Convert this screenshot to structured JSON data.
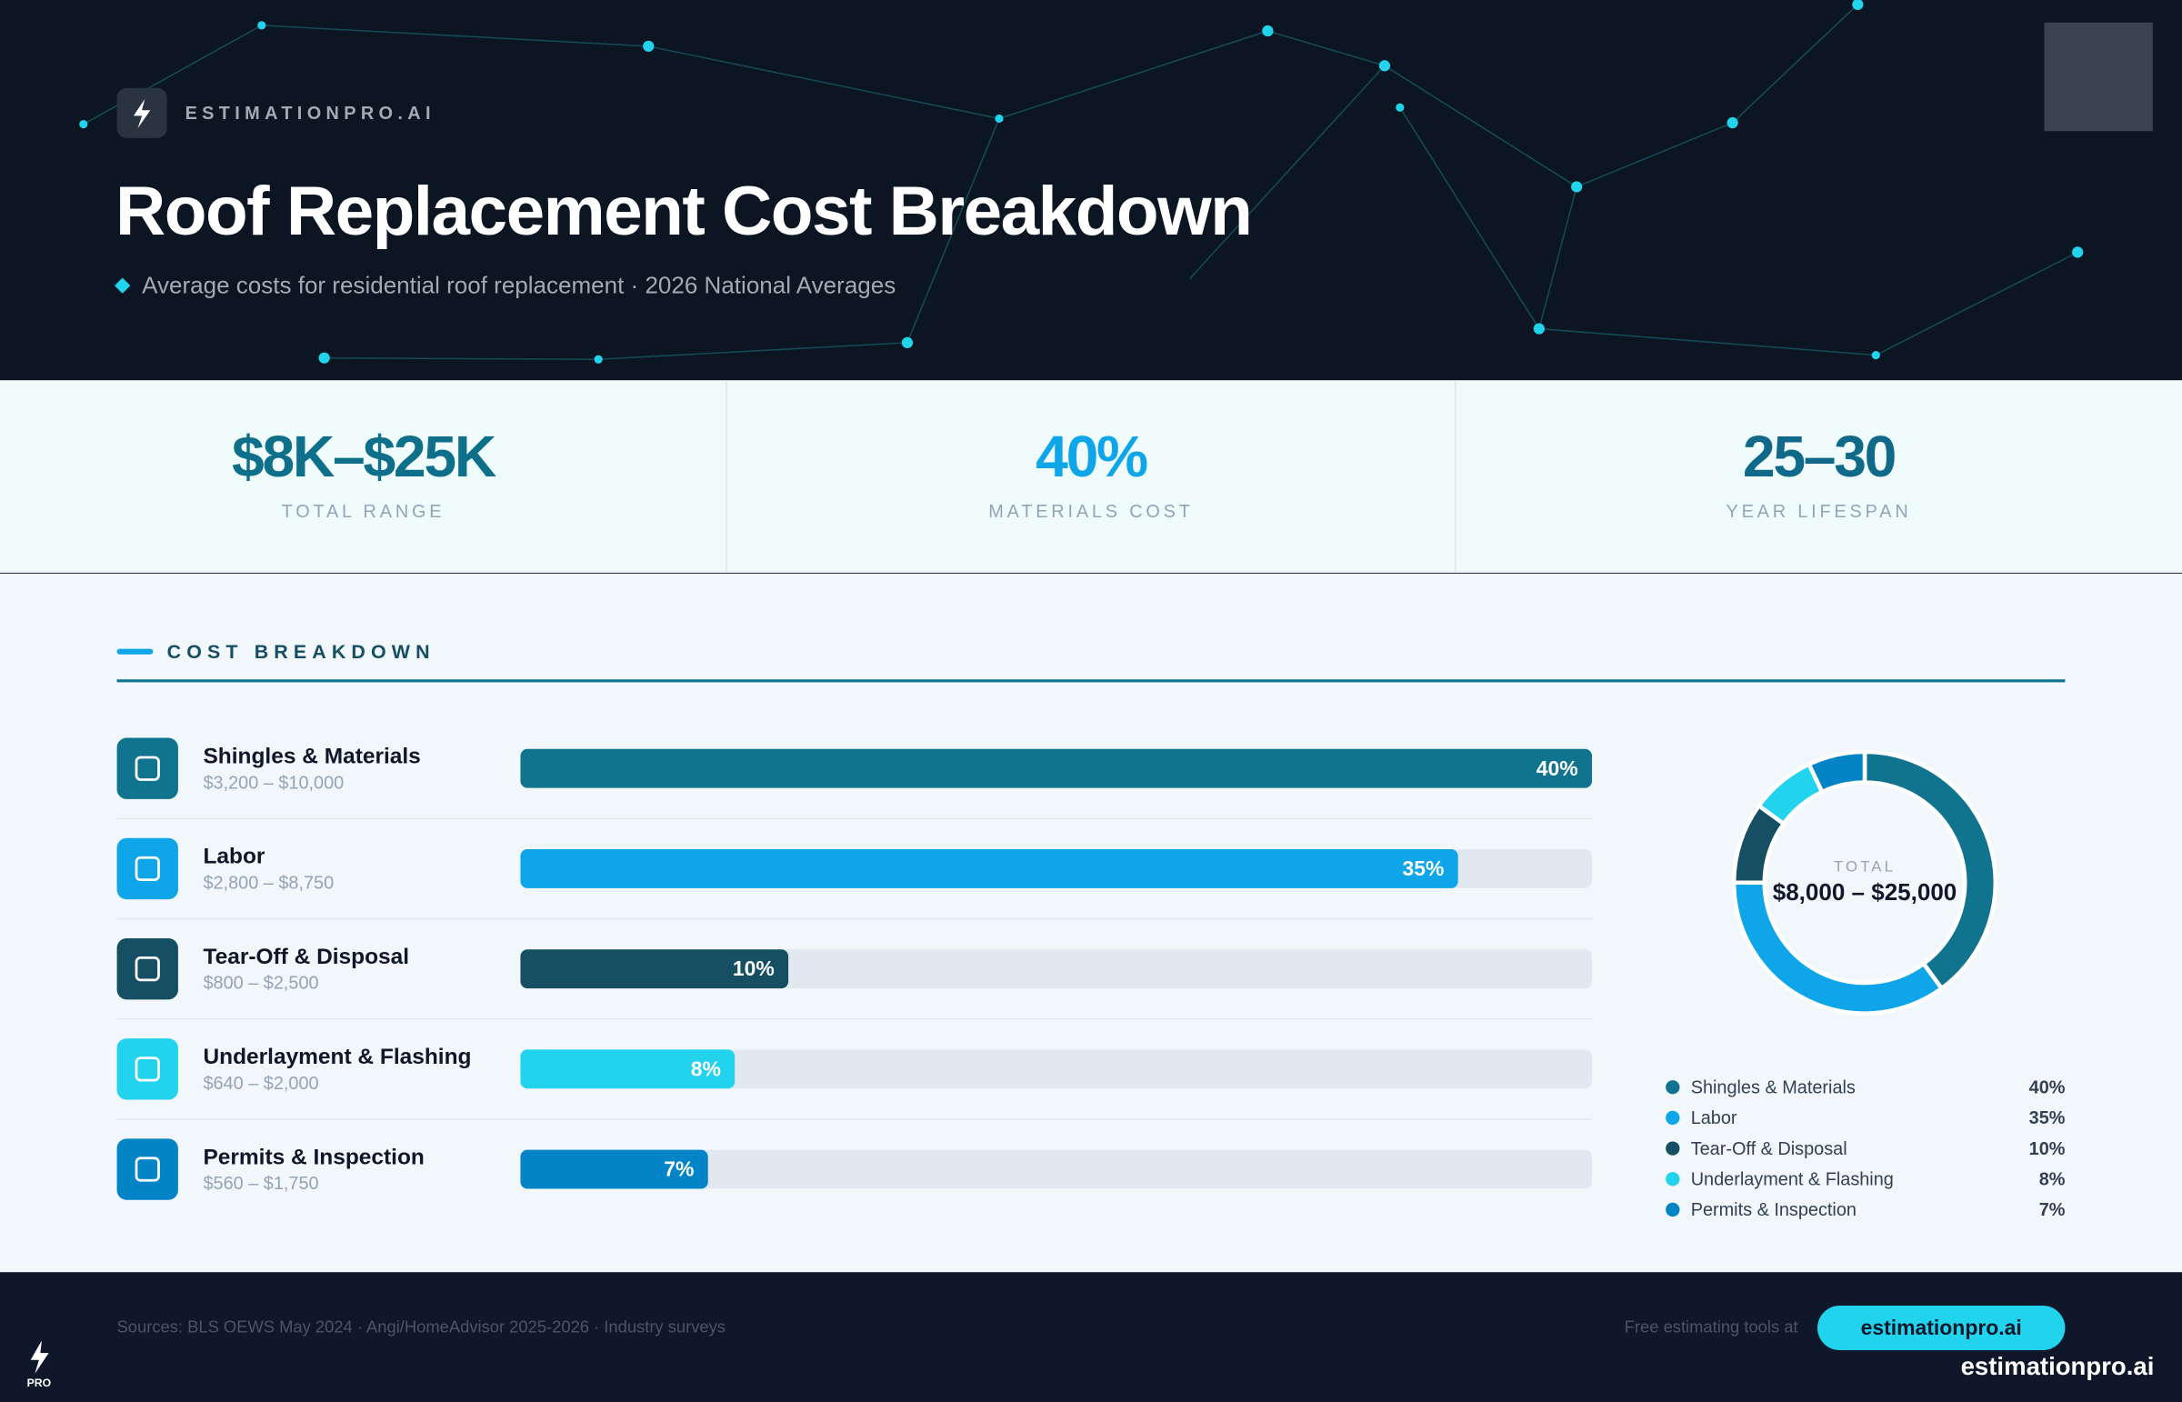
{
  "header": {
    "brand": "ESTIMATIONPRO.AI",
    "title": "Roof Replacement Cost Breakdown",
    "subtitle": "Average costs for residential roof replacement · 2026 National Averages"
  },
  "stats": [
    {
      "value": "$8K–$25K",
      "label": "TOTAL RANGE"
    },
    {
      "value": "40%",
      "label": "MATERIALS COST"
    },
    {
      "value": "25–30",
      "label": "YEAR LIFESPAN"
    }
  ],
  "section_title": "COST BREAKDOWN",
  "chart_data": [
    {
      "type": "bar",
      "orientation": "horizontal",
      "categories": [
        "Shingles & Materials",
        "Labor",
        "Tear-Off & Disposal",
        "Underlayment & Flashing",
        "Permits & Inspection"
      ],
      "category_ranges": [
        "$3,200 – $10,000",
        "$2,800 – $8,750",
        "$800 – $2,500",
        "$640 – $2,000",
        "$560 – $1,750"
      ],
      "values": [
        40,
        35,
        10,
        8,
        7
      ],
      "value_labels": [
        "40%",
        "35%",
        "10%",
        "8%",
        "7%"
      ],
      "colors": [
        "#11748f",
        "#0ea5e9",
        "#164e63",
        "#22d3ee",
        "#0284c7"
      ],
      "xlim": [
        0,
        40
      ]
    },
    {
      "type": "pie",
      "donut": true,
      "center_label": "TOTAL",
      "center_value": "$8,000 – $25,000",
      "categories": [
        "Shingles & Materials",
        "Labor",
        "Tear-Off & Disposal",
        "Underlayment & Flashing",
        "Permits & Inspection"
      ],
      "values": [
        40,
        35,
        10,
        8,
        7
      ],
      "value_labels": [
        "40%",
        "35%",
        "10%",
        "8%",
        "7%"
      ],
      "colors": [
        "#11748f",
        "#0ea5e9",
        "#164e63",
        "#22d3ee",
        "#0284c7"
      ]
    }
  ],
  "footer": {
    "sources": "Sources: BLS OEWS May 2024 · Angi/HomeAdvisor 2025-2026 · Industry surveys",
    "cta_text": "Free estimating tools at",
    "cta_button": "estimationpro.ai",
    "brand": "estimationpro.ai",
    "logo_text": "PRO"
  }
}
